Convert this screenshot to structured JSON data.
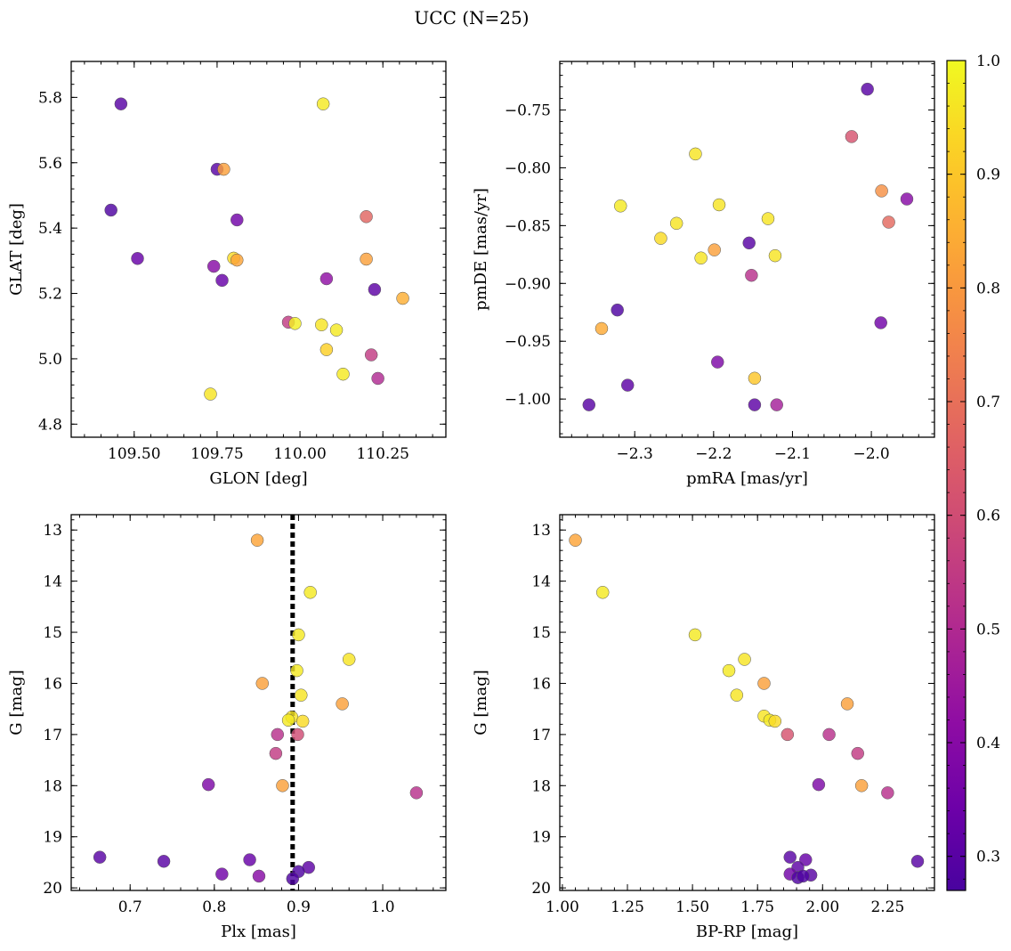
{
  "figure": {
    "title": "UCC (N=25)",
    "colormap": "plasma",
    "colorbar": {
      "range": [
        0.27,
        1.0
      ],
      "ticks": [
        0.3,
        0.4,
        0.5,
        0.6,
        0.7,
        0.8,
        0.9,
        1.0
      ],
      "tick_labels": [
        "0.3",
        "0.4",
        "0.5",
        "0.6",
        "0.7",
        "0.8",
        "0.9",
        "1.0"
      ]
    }
  },
  "chart_data": [
    {
      "type": "scatter",
      "xlabel": "GLON [deg]",
      "ylabel": "GLAT [deg]",
      "xlim": [
        109.31,
        110.44
      ],
      "ylim": [
        4.76,
        5.91
      ],
      "xticks": [
        109.5,
        109.75,
        110.0,
        110.25
      ],
      "xtick_labels": [
        "109.50",
        "109.75",
        "110.00",
        "110.25"
      ],
      "yticks": [
        4.8,
        5.0,
        5.2,
        5.4,
        5.6,
        5.8
      ],
      "ytick_labels": [
        "4.8",
        "5.0",
        "5.2",
        "5.4",
        "5.6",
        "5.8"
      ],
      "points": [
        {
          "x": 109.46,
          "y": 5.78,
          "c": 0.3
        },
        {
          "x": 110.07,
          "y": 5.78,
          "c": 0.97
        },
        {
          "x": 109.75,
          "y": 5.58,
          "c": 0.3
        },
        {
          "x": 109.77,
          "y": 5.58,
          "c": 0.82
        },
        {
          "x": 109.43,
          "y": 5.455,
          "c": 0.28
        },
        {
          "x": 109.81,
          "y": 5.425,
          "c": 0.35
        },
        {
          "x": 110.2,
          "y": 5.435,
          "c": 0.67
        },
        {
          "x": 109.51,
          "y": 5.307,
          "c": 0.33
        },
        {
          "x": 109.8,
          "y": 5.308,
          "c": 0.94
        },
        {
          "x": 109.81,
          "y": 5.302,
          "c": 0.83
        },
        {
          "x": 110.2,
          "y": 5.305,
          "c": 0.82
        },
        {
          "x": 109.74,
          "y": 5.283,
          "c": 0.4
        },
        {
          "x": 109.765,
          "y": 5.24,
          "c": 0.33
        },
        {
          "x": 110.08,
          "y": 5.245,
          "c": 0.42
        },
        {
          "x": 110.225,
          "y": 5.212,
          "c": 0.31
        },
        {
          "x": 110.31,
          "y": 5.185,
          "c": 0.85
        },
        {
          "x": 109.965,
          "y": 5.112,
          "c": 0.55
        },
        {
          "x": 109.985,
          "y": 5.108,
          "c": 0.98
        },
        {
          "x": 110.065,
          "y": 5.104,
          "c": 0.96
        },
        {
          "x": 110.11,
          "y": 5.088,
          "c": 0.97
        },
        {
          "x": 110.08,
          "y": 5.028,
          "c": 0.92
        },
        {
          "x": 110.215,
          "y": 5.012,
          "c": 0.55
        },
        {
          "x": 110.13,
          "y": 4.953,
          "c": 0.97
        },
        {
          "x": 110.235,
          "y": 4.94,
          "c": 0.5
        },
        {
          "x": 109.73,
          "y": 4.892,
          "c": 0.96
        }
      ]
    },
    {
      "type": "scatter",
      "xlabel": "pmRA [mas/yr]",
      "ylabel": "pmDE [mas/yr]",
      "xlim": [
        -2.395,
        -1.92
      ],
      "ylim": [
        -1.033,
        -0.708
      ],
      "xticks": [
        -2.3,
        -2.2,
        -2.1,
        -2.0
      ],
      "xtick_labels": [
        "−2.3",
        "−2.2",
        "−2.1",
        "−2.0"
      ],
      "yticks": [
        -1.0,
        -0.95,
        -0.9,
        -0.85,
        -0.8,
        -0.75
      ],
      "ytick_labels": [
        "−1.00",
        "−0.95",
        "−0.90",
        "−0.85",
        "−0.80",
        "−0.75"
      ],
      "points": [
        {
          "x": -2.005,
          "y": -0.732,
          "c": 0.3
        },
        {
          "x": -2.025,
          "y": -0.773,
          "c": 0.62
        },
        {
          "x": -2.223,
          "y": -0.788,
          "c": 0.96
        },
        {
          "x": -1.987,
          "y": -0.82,
          "c": 0.78
        },
        {
          "x": -1.955,
          "y": -0.827,
          "c": 0.4
        },
        {
          "x": -2.318,
          "y": -0.833,
          "c": 0.97
        },
        {
          "x": -2.193,
          "y": -0.832,
          "c": 0.96
        },
        {
          "x": -2.131,
          "y": -0.844,
          "c": 0.96
        },
        {
          "x": -1.978,
          "y": -0.847,
          "c": 0.68
        },
        {
          "x": -2.247,
          "y": -0.848,
          "c": 0.96
        },
        {
          "x": -2.267,
          "y": -0.861,
          "c": 0.94
        },
        {
          "x": -2.155,
          "y": -0.865,
          "c": 0.3
        },
        {
          "x": -2.199,
          "y": -0.871,
          "c": 0.82
        },
        {
          "x": -2.216,
          "y": -0.878,
          "c": 0.96
        },
        {
          "x": -2.122,
          "y": -0.876,
          "c": 0.96
        },
        {
          "x": -2.152,
          "y": -0.893,
          "c": 0.52
        },
        {
          "x": -2.322,
          "y": -0.923,
          "c": 0.28
        },
        {
          "x": -1.988,
          "y": -0.934,
          "c": 0.35
        },
        {
          "x": -2.342,
          "y": -0.939,
          "c": 0.84
        },
        {
          "x": -2.195,
          "y": -0.968,
          "c": 0.38
        },
        {
          "x": -2.148,
          "y": -0.982,
          "c": 0.9
        },
        {
          "x": -2.309,
          "y": -0.988,
          "c": 0.31
        },
        {
          "x": -2.358,
          "y": -1.005,
          "c": 0.3
        },
        {
          "x": -2.148,
          "y": -1.005,
          "c": 0.31
        },
        {
          "x": -2.12,
          "y": -1.005,
          "c": 0.47
        }
      ]
    },
    {
      "type": "scatter",
      "xlabel": "Plx [mas]",
      "ylabel": "G [mag]",
      "xlim": [
        0.63,
        1.075
      ],
      "ylim": [
        20.05,
        12.7
      ],
      "xticks": [
        0.7,
        0.8,
        0.9,
        1.0
      ],
      "xtick_labels": [
        "0.7",
        "0.8",
        "0.9",
        "1.0"
      ],
      "yticks": [
        13,
        14,
        15,
        16,
        17,
        18,
        19,
        20
      ],
      "ytick_labels": [
        "13",
        "14",
        "15",
        "16",
        "17",
        "18",
        "19",
        "20"
      ],
      "vline": 0.893,
      "points": [
        {
          "x": 0.851,
          "y": 13.2,
          "c": 0.83
        },
        {
          "x": 0.914,
          "y": 14.22,
          "c": 0.97
        },
        {
          "x": 0.9,
          "y": 15.05,
          "c": 0.97
        },
        {
          "x": 0.96,
          "y": 15.53,
          "c": 0.96
        },
        {
          "x": 0.857,
          "y": 16.0,
          "c": 0.82
        },
        {
          "x": 0.898,
          "y": 15.75,
          "c": 0.97
        },
        {
          "x": 0.903,
          "y": 16.23,
          "c": 0.96
        },
        {
          "x": 0.952,
          "y": 16.4,
          "c": 0.82
        },
        {
          "x": 0.892,
          "y": 16.66,
          "c": 0.96
        },
        {
          "x": 0.888,
          "y": 16.72,
          "c": 0.97
        },
        {
          "x": 0.905,
          "y": 16.74,
          "c": 0.94
        },
        {
          "x": 0.875,
          "y": 17.0,
          "c": 0.52
        },
        {
          "x": 0.899,
          "y": 17.0,
          "c": 0.6
        },
        {
          "x": 0.873,
          "y": 17.37,
          "c": 0.55
        },
        {
          "x": 0.793,
          "y": 17.98,
          "c": 0.38
        },
        {
          "x": 0.881,
          "y": 18.0,
          "c": 0.82
        },
        {
          "x": 1.04,
          "y": 18.14,
          "c": 0.52
        },
        {
          "x": 0.664,
          "y": 19.4,
          "c": 0.3
        },
        {
          "x": 0.74,
          "y": 19.48,
          "c": 0.3
        },
        {
          "x": 0.842,
          "y": 19.45,
          "c": 0.33
        },
        {
          "x": 0.912,
          "y": 19.6,
          "c": 0.31
        },
        {
          "x": 0.9,
          "y": 19.68,
          "c": 0.28
        },
        {
          "x": 0.809,
          "y": 19.73,
          "c": 0.35
        },
        {
          "x": 0.853,
          "y": 19.77,
          "c": 0.4
        },
        {
          "x": 0.893,
          "y": 19.82,
          "c": 0.28
        }
      ]
    },
    {
      "type": "scatter",
      "xlabel": "BP-RP [mag]",
      "ylabel": "G [mag]",
      "xlim": [
        0.99,
        2.43
      ],
      "ylim": [
        20.05,
        12.7
      ],
      "xticks": [
        1.0,
        1.25,
        1.5,
        1.75,
        2.0,
        2.25
      ],
      "xtick_labels": [
        "1.00",
        "1.25",
        "1.50",
        "1.75",
        "2.00",
        "2.25"
      ],
      "yticks": [
        13,
        14,
        15,
        16,
        17,
        18,
        19,
        20
      ],
      "ytick_labels": [
        "13",
        "14",
        "15",
        "16",
        "17",
        "18",
        "19",
        "20"
      ],
      "points": [
        {
          "x": 1.05,
          "y": 13.2,
          "c": 0.83
        },
        {
          "x": 1.155,
          "y": 14.22,
          "c": 0.97
        },
        {
          "x": 1.51,
          "y": 15.05,
          "c": 0.97
        },
        {
          "x": 1.7,
          "y": 15.53,
          "c": 0.96
        },
        {
          "x": 1.64,
          "y": 15.75,
          "c": 0.97
        },
        {
          "x": 1.775,
          "y": 16.0,
          "c": 0.82
        },
        {
          "x": 1.67,
          "y": 16.23,
          "c": 0.96
        },
        {
          "x": 2.095,
          "y": 16.4,
          "c": 0.82
        },
        {
          "x": 1.775,
          "y": 16.64,
          "c": 0.96
        },
        {
          "x": 1.797,
          "y": 16.72,
          "c": 0.97
        },
        {
          "x": 1.817,
          "y": 16.74,
          "c": 0.94
        },
        {
          "x": 1.865,
          "y": 17.0,
          "c": 0.62
        },
        {
          "x": 2.025,
          "y": 17.0,
          "c": 0.52
        },
        {
          "x": 2.135,
          "y": 17.37,
          "c": 0.55
        },
        {
          "x": 1.985,
          "y": 17.98,
          "c": 0.38
        },
        {
          "x": 2.15,
          "y": 18.0,
          "c": 0.82
        },
        {
          "x": 2.25,
          "y": 18.14,
          "c": 0.52
        },
        {
          "x": 1.875,
          "y": 19.4,
          "c": 0.3
        },
        {
          "x": 1.935,
          "y": 19.45,
          "c": 0.33
        },
        {
          "x": 2.365,
          "y": 19.48,
          "c": 0.3
        },
        {
          "x": 1.905,
          "y": 19.6,
          "c": 0.31
        },
        {
          "x": 1.875,
          "y": 19.73,
          "c": 0.35
        },
        {
          "x": 1.955,
          "y": 19.75,
          "c": 0.3
        },
        {
          "x": 1.905,
          "y": 19.8,
          "c": 0.28
        },
        {
          "x": 1.925,
          "y": 19.77,
          "c": 0.28
        }
      ]
    }
  ]
}
